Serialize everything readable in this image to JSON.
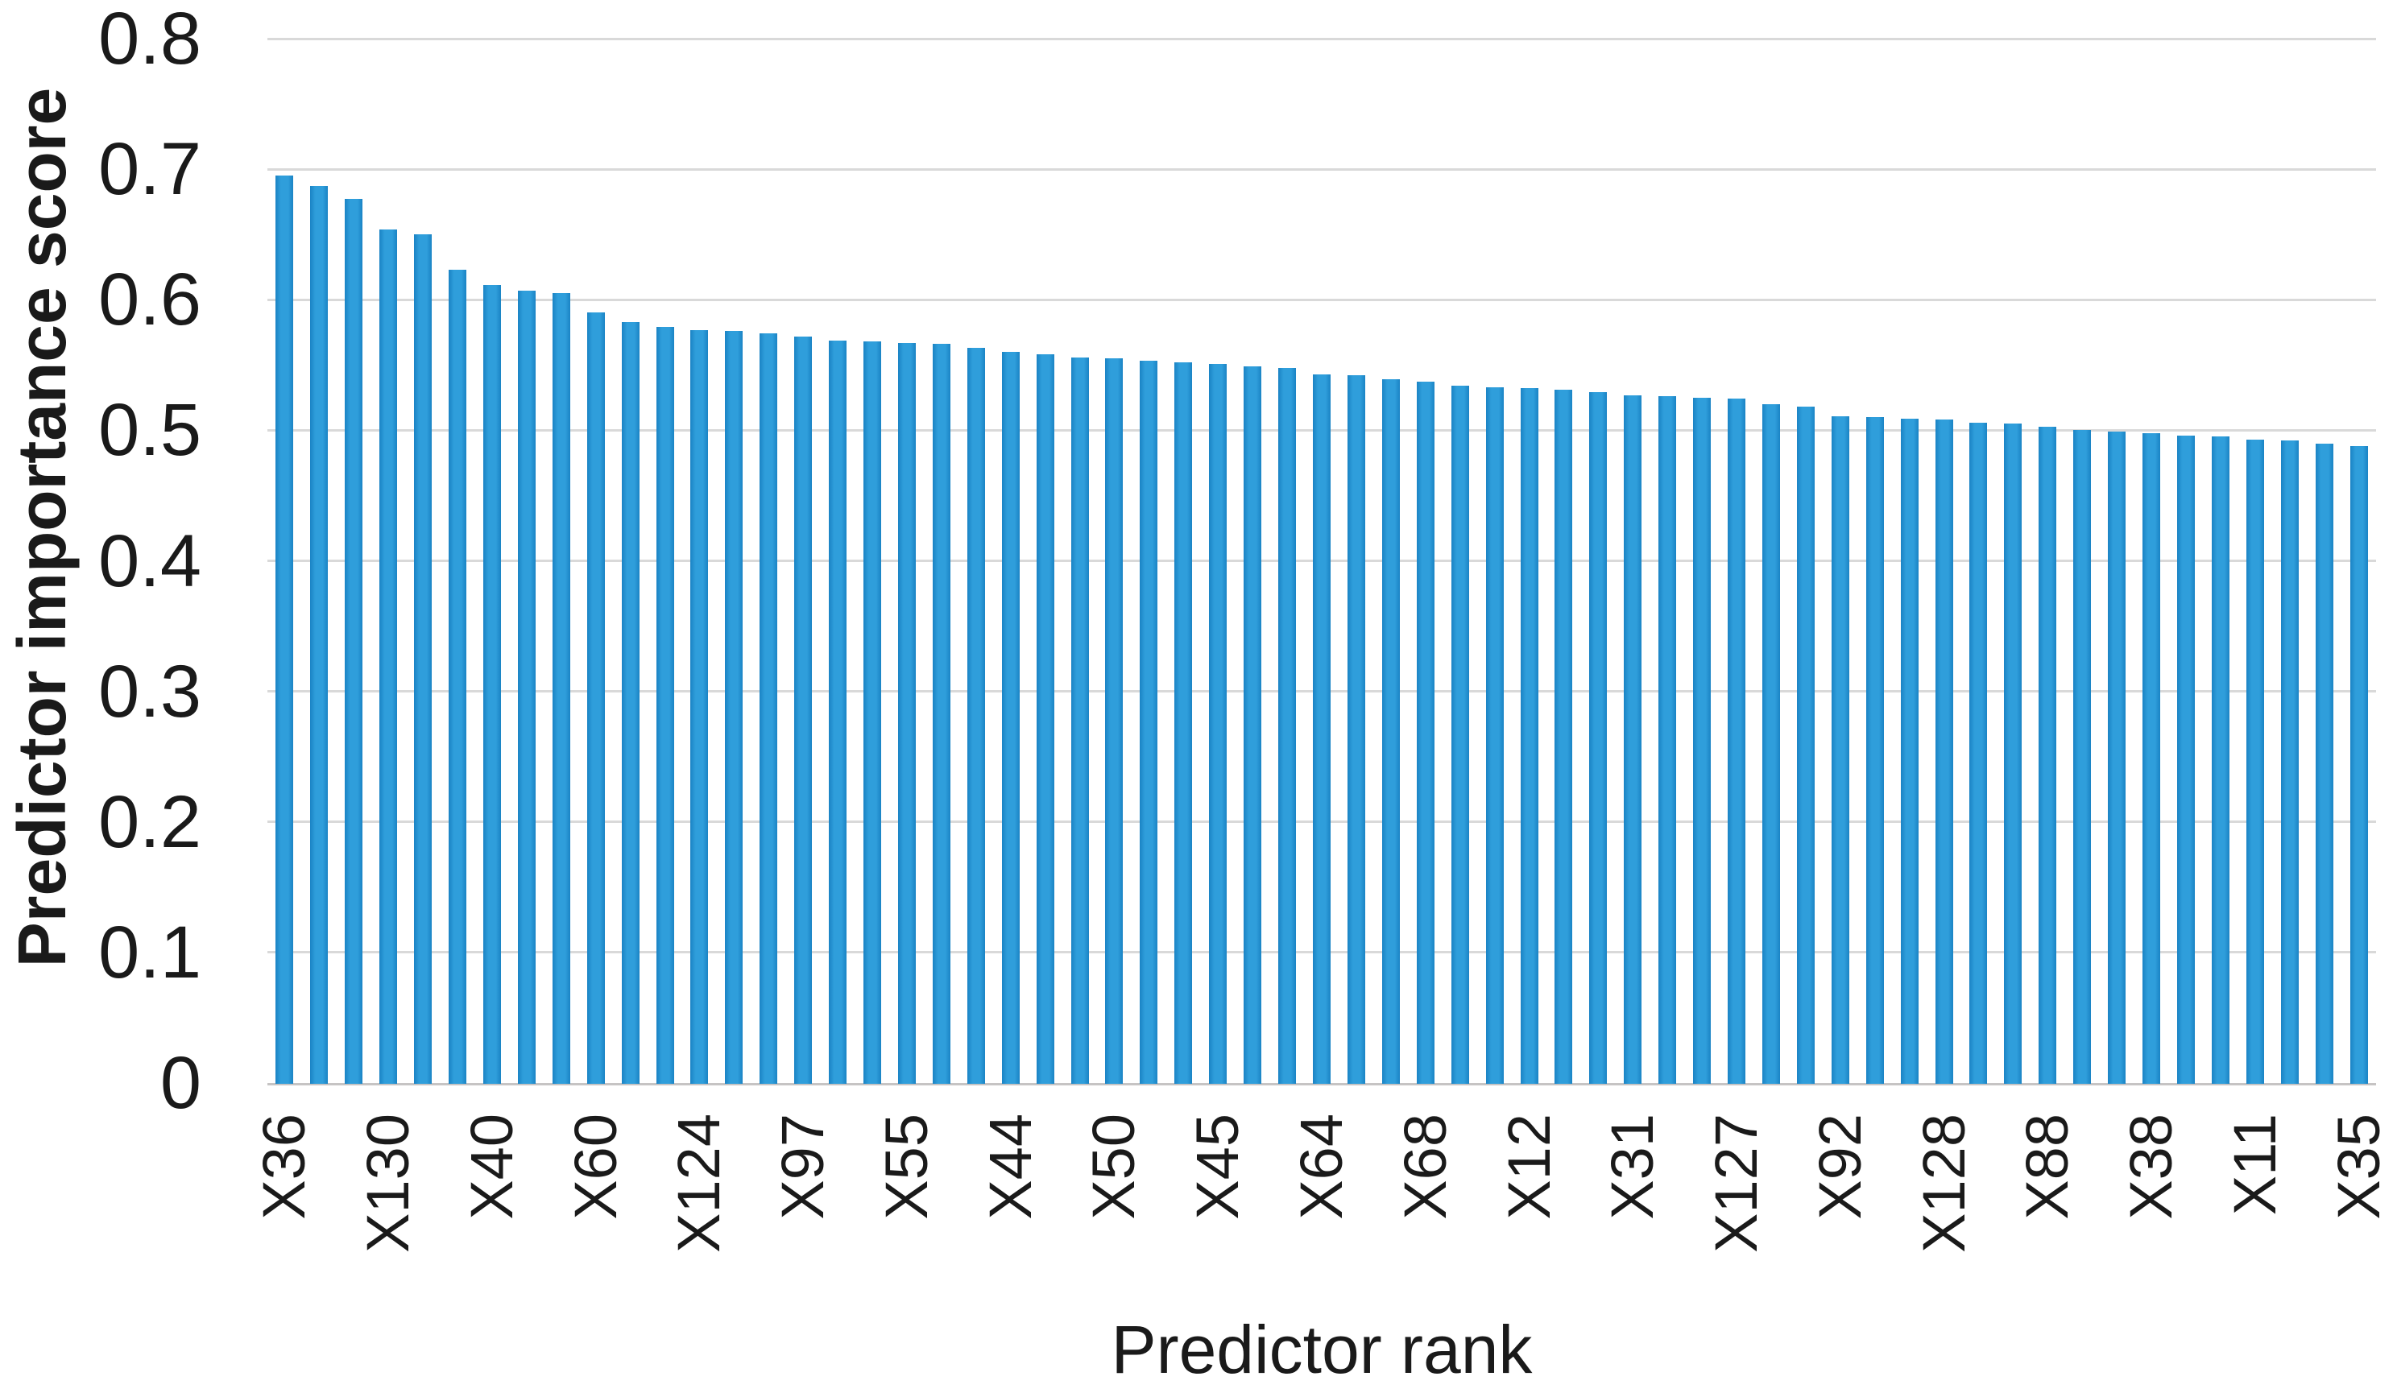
{
  "chart_data": {
    "type": "bar",
    "title": "",
    "xlabel": "Predictor rank",
    "ylabel": "Predictor importance score",
    "ylim": [
      0,
      0.8
    ],
    "ytick_step": 0.1,
    "yticks": [
      "0",
      "0.1",
      "0.2",
      "0.3",
      "0.4",
      "0.5",
      "0.6",
      "0.7",
      "0.8"
    ],
    "grid": true,
    "legend_position": "none",
    "bar_color": "#2f9edb",
    "gridline_color": "#d9d9d9",
    "x_tick_interval": 3,
    "x_tick_labels": [
      "X36",
      "X130",
      "X40",
      "X60",
      "X124",
      "X97",
      "X55",
      "X44",
      "X50",
      "X45",
      "X64",
      "X68",
      "X12",
      "X31",
      "X127",
      "X92",
      "X128",
      "X88",
      "X38",
      "X11",
      "X35"
    ],
    "values": [
      0.695,
      0.687,
      0.677,
      0.654,
      0.65,
      0.623,
      0.611,
      0.607,
      0.605,
      0.59,
      0.583,
      0.579,
      0.577,
      0.576,
      0.574,
      0.572,
      0.569,
      0.568,
      0.567,
      0.566,
      0.563,
      0.56,
      0.558,
      0.556,
      0.555,
      0.553,
      0.552,
      0.551,
      0.549,
      0.548,
      0.543,
      0.542,
      0.539,
      0.537,
      0.534,
      0.533,
      0.532,
      0.531,
      0.529,
      0.527,
      0.526,
      0.525,
      0.524,
      0.52,
      0.518,
      0.511,
      0.51,
      0.509,
      0.508,
      0.506,
      0.505,
      0.503,
      0.5,
      0.499,
      0.498,
      0.496,
      0.495,
      0.493,
      0.492,
      0.49,
      0.488
    ]
  }
}
